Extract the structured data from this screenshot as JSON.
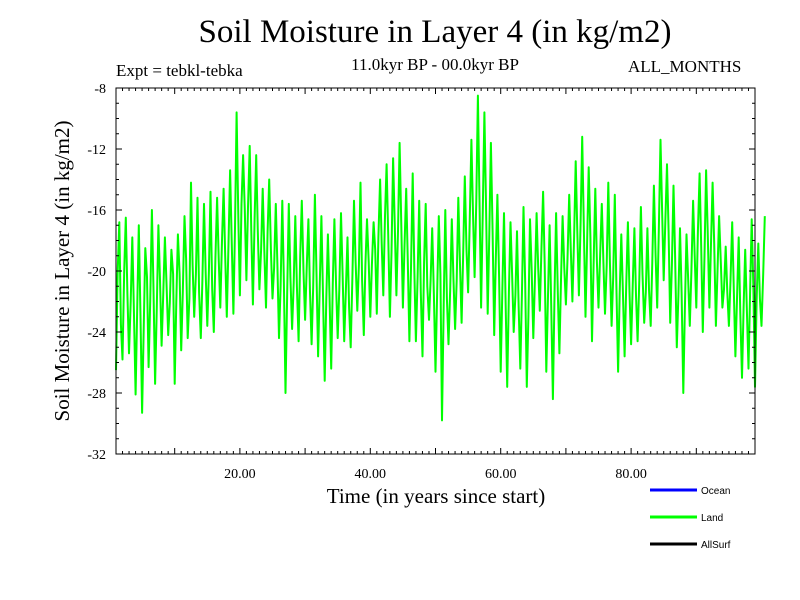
{
  "chart_data": {
    "type": "line",
    "title": "Soil Moisture in Layer 4 (in kg/m2)",
    "subtitle": "11.0kyr BP - 00.0kyr BP",
    "experiment": "Expt = tebkl-tebka",
    "period": "ALL_MONTHS",
    "xlabel": "Time (in years since start)",
    "ylabel": "Soil Moisture in Layer 4 (in kg/m2)",
    "xlim": [
      1,
      99
    ],
    "ylim": [
      -32,
      -8
    ],
    "x_ticks": [
      20,
      40,
      60,
      80
    ],
    "x_tick_labels": [
      "20.00",
      "40.00",
      "60.00",
      "80.00"
    ],
    "y_ticks": [
      -8,
      -12,
      -16,
      -20,
      -24,
      -28,
      -32
    ],
    "y_tick_labels": [
      "-8",
      "-12",
      "-16",
      "-20",
      "-24",
      "-28",
      "-32"
    ],
    "legend": [
      {
        "name": "Ocean",
        "color": "#0000ff"
      },
      {
        "name": "Land",
        "color": "#00ff00"
      },
      {
        "name": "AllSurf",
        "color": "#000000"
      }
    ],
    "series": [
      {
        "name": "Land",
        "color": "#00ff00",
        "x_start": 1,
        "x_step": 0.25,
        "values": [
          -26.5,
          -20.2,
          -16.8,
          -23.5,
          -25.8,
          -20.0,
          -16.5,
          -21.5,
          -25.4,
          -22.0,
          -17.8,
          -22.6,
          -28.1,
          -22.5,
          -17.0,
          -23.0,
          -29.3,
          -23.8,
          -18.5,
          -20.4,
          -26.3,
          -22.0,
          -16.0,
          -21.2,
          -27.4,
          -22.4,
          -17.0,
          -20.6,
          -24.9,
          -21.4,
          -17.8,
          -20.8,
          -24.2,
          -22.1,
          -18.6,
          -20.2,
          -27.4,
          -22.0,
          -17.6,
          -20.2,
          -25.2,
          -21.4,
          -16.4,
          -19.2,
          -24.4,
          -21.8,
          -14.2,
          -19.6,
          -23.0,
          -20.2,
          -15.2,
          -21.4,
          -24.4,
          -20.6,
          -15.6,
          -20.2,
          -23.6,
          -20.0,
          -14.8,
          -21.2,
          -24.0,
          -19.2,
          -15.2,
          -19.2,
          -22.4,
          -18.0,
          -14.6,
          -19.0,
          -23.0,
          -18.2,
          -13.4,
          -18.0,
          -22.8,
          -17.2,
          -9.6,
          -16.4,
          -21.6,
          -15.6,
          -12.4,
          -16.0,
          -20.6,
          -15.8,
          -11.8,
          -17.4,
          -22.2,
          -16.6,
          -12.4,
          -17.4,
          -21.2,
          -18.6,
          -14.6,
          -18.6,
          -22.4,
          -17.4,
          -14.0,
          -18.6,
          -21.8,
          -19.8,
          -15.6,
          -19.6,
          -24.4,
          -21.0,
          -15.4,
          -20.8,
          -28.0,
          -21.4,
          -15.6,
          -20.4,
          -23.8,
          -20.8,
          -16.4,
          -21.0,
          -24.6,
          -19.0,
          -15.4,
          -20.0,
          -23.2,
          -19.8,
          -16.6,
          -21.4,
          -24.8,
          -21.0,
          -15.0,
          -20.2,
          -25.6,
          -20.8,
          -16.4,
          -21.6,
          -27.2,
          -21.8,
          -17.6,
          -21.6,
          -26.4,
          -20.8,
          -16.6,
          -21.0,
          -24.4,
          -21.2,
          -16.2,
          -20.2,
          -24.6,
          -21.4,
          -17.8,
          -22.4,
          -25.0,
          -20.4,
          -15.4,
          -19.4,
          -22.6,
          -19.6,
          -14.2,
          -20.6,
          -24.2,
          -19.6,
          -16.6,
          -19.4,
          -23.0,
          -19.6,
          -16.8,
          -18.6,
          -22.8,
          -17.8,
          -14.0,
          -18.2,
          -21.6,
          -16.4,
          -13.0,
          -17.6,
          -23.0,
          -18.8,
          -12.6,
          -16.8,
          -21.6,
          -17.4,
          -11.6,
          -17.0,
          -22.4,
          -18.4,
          -14.6,
          -19.4,
          -24.6,
          -19.8,
          -13.6,
          -19.8,
          -24.6,
          -20.4,
          -15.4,
          -21.4,
          -25.6,
          -19.4,
          -15.6,
          -21.0,
          -23.2,
          -20.6,
          -17.2,
          -21.6,
          -26.6,
          -21.6,
          -16.4,
          -20.2,
          -29.8,
          -22.2,
          -16.0,
          -21.8,
          -24.8,
          -21.2,
          -16.6,
          -20.4,
          -23.8,
          -20.6,
          -15.2,
          -19.6,
          -23.4,
          -18.8,
          -13.8,
          -18.6,
          -21.4,
          -16.8,
          -11.4,
          -16.2,
          -20.4,
          -15.4,
          -8.5,
          -15.4,
          -22.4,
          -16.0,
          -9.6,
          -15.6,
          -22.8,
          -17.6,
          -11.6,
          -17.4,
          -24.2,
          -19.2,
          -15.0,
          -20.4,
          -26.6,
          -21.4,
          -16.2,
          -22.0,
          -27.6,
          -21.4,
          -16.8,
          -20.2,
          -24.0,
          -21.6,
          -17.4,
          -22.2,
          -26.4,
          -21.6,
          -15.8,
          -20.8,
          -27.6,
          -23.0,
          -16.6,
          -20.0,
          -24.4,
          -20.6,
          -16.2,
          -19.8,
          -22.6,
          -18.4,
          -14.8,
          -19.6,
          -26.6,
          -21.6,
          -17.0,
          -22.2,
          -28.4,
          -21.6,
          -16.2,
          -21.4,
          -25.4,
          -20.6,
          -16.4,
          -19.8,
          -22.2,
          -19.2,
          -15.0,
          -18.6,
          -22.0,
          -17.8,
          -12.8,
          -17.4,
          -21.6,
          -16.8,
          -11.2,
          -17.0,
          -23.0,
          -18.2,
          -13.2,
          -17.8,
          -24.6,
          -19.6,
          -14.6,
          -19.4,
          -22.4,
          -19.0,
          -15.6,
          -19.4,
          -22.8,
          -19.6,
          -14.2,
          -19.4,
          -23.6,
          -20.4,
          -15.0,
          -21.0,
          -26.6,
          -21.4,
          -17.6,
          -21.6,
          -25.6,
          -21.0,
          -16.8,
          -21.4,
          -24.8,
          -21.0,
          -17.2,
          -21.6,
          -24.6,
          -20.6,
          -15.8,
          -20.2,
          -23.4,
          -21.4,
          -17.2,
          -21.2,
          -23.6,
          -19.4,
          -14.4,
          -19.0,
          -22.4,
          -17.4,
          -11.4,
          -16.0,
          -20.6,
          -16.8,
          -13.0,
          -17.4,
          -23.4,
          -19.6,
          -14.4,
          -19.0,
          -25.0,
          -21.6,
          -17.2,
          -21.4,
          -28.0,
          -22.4,
          -17.6,
          -20.6,
          -23.6,
          -20.0,
          -15.4,
          -19.0,
          -22.4,
          -17.4,
          -13.6,
          -18.4,
          -24.0,
          -19.0,
          -13.4,
          -17.4,
          -22.4,
          -18.2,
          -14.2,
          -18.2,
          -23.6,
          -20.0,
          -16.4,
          -19.4,
          -22.4,
          -21.2,
          -18.4,
          -21.4,
          -23.6,
          -20.6,
          -16.8,
          -21.2,
          -25.6,
          -21.6,
          -17.8,
          -22.8,
          -27.0,
          -22.4,
          -18.6,
          -22.4,
          -26.4,
          -21.4,
          -16.6,
          -21.2,
          -27.6,
          -22.0,
          -18.2,
          -21.8,
          -23.6,
          -20.2,
          -16.4
        ]
      }
    ]
  }
}
